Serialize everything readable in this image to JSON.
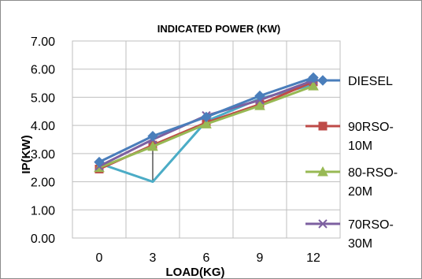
{
  "chart_data": {
    "type": "line",
    "title": "INDICATED POWER (KW)",
    "xlabel": "LOAD(KG)",
    "ylabel": "IP(KW)",
    "categories": [
      "0",
      "3",
      "6",
      "9",
      "12"
    ],
    "ylim": [
      0,
      7
    ],
    "yticks": [
      "0.00",
      "1.00",
      "2.00",
      "3.00",
      "4.00",
      "5.00",
      "6.00",
      "7.00"
    ],
    "grid": true,
    "legend_position": "right",
    "series": [
      {
        "name": "DIESEL",
        "values": [
          2.7,
          3.62,
          4.3,
          5.05,
          5.7
        ],
        "color": "#4a7ebb",
        "marker": "diamond"
      },
      {
        "name": "90RSO-10M",
        "values": [
          2.45,
          3.3,
          4.1,
          4.75,
          5.55
        ],
        "color": "#be4b48",
        "marker": "square"
      },
      {
        "name": "80-RSO-20M",
        "values": [
          2.5,
          3.25,
          4.05,
          4.7,
          5.4
        ],
        "color": "#98b954",
        "marker": "triangle"
      },
      {
        "name": "70RSO-30M",
        "values": [
          2.55,
          3.5,
          4.35,
          4.9,
          5.6
        ],
        "color": "#7d60a0",
        "marker": "x"
      },
      {
        "name": "",
        "values": [
          2.65,
          2.0,
          4.15,
          4.95,
          5.45
        ],
        "color": "#4bacc6",
        "marker": "none"
      }
    ],
    "error_bars": [
      {
        "category": "0",
        "low": 2.45,
        "high": 2.7
      },
      {
        "category": "3",
        "low": 2.0,
        "high": 3.62
      },
      {
        "category": "6",
        "low": 4.05,
        "high": 4.35
      },
      {
        "category": "9",
        "low": 4.7,
        "high": 5.05
      },
      {
        "category": "12",
        "low": 5.4,
        "high": 5.7
      }
    ]
  },
  "legend": [
    {
      "lines": [
        "DIESEL"
      ]
    },
    {
      "lines": [
        "90RSO-",
        "10M"
      ]
    },
    {
      "lines": [
        "80-RSO-",
        "20M"
      ]
    },
    {
      "lines": [
        "70RSO-",
        "30M"
      ]
    }
  ]
}
